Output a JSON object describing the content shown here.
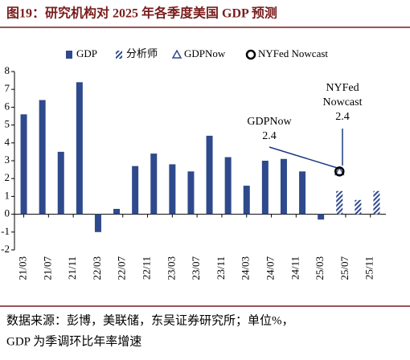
{
  "chart_data": {
    "type": "bar",
    "title": "图19：研究机构对 2025 年各季度美国 GDP 预测",
    "xlim": [
      -1.5,
      58.5
    ],
    "xticks": [
      {
        "value": 0,
        "label": "21/03"
      },
      {
        "value": 4,
        "label": "21/07"
      },
      {
        "value": 8,
        "label": "21/11"
      },
      {
        "value": 12,
        "label": "22/03"
      },
      {
        "value": 16,
        "label": "22/07"
      },
      {
        "value": 20,
        "label": "22/11"
      },
      {
        "value": 24,
        "label": "23/03"
      },
      {
        "value": 28,
        "label": "23/07"
      },
      {
        "value": 32,
        "label": "23/11"
      },
      {
        "value": 36,
        "label": "24/03"
      },
      {
        "value": 40,
        "label": "24/07"
      },
      {
        "value": 44,
        "label": "24/11"
      },
      {
        "value": 48,
        "label": "25/03"
      },
      {
        "value": 52,
        "label": "25/07"
      },
      {
        "value": 56,
        "label": "25/11"
      }
    ],
    "ylim": [
      -2,
      8
    ],
    "yticks": [
      -2,
      -1,
      0,
      1,
      2,
      3,
      4,
      5,
      6,
      7,
      8
    ],
    "legend": "top",
    "series": [
      {
        "name": "GDP",
        "kind": "bar",
        "color": "#2e4a8c",
        "x": [
          0,
          3,
          6,
          9,
          12,
          15,
          18,
          21,
          24,
          27,
          30,
          33,
          36,
          39,
          42,
          45,
          48
        ],
        "values": [
          5.6,
          6.4,
          3.5,
          7.4,
          -1.0,
          0.3,
          2.7,
          3.4,
          2.8,
          2.4,
          4.4,
          3.2,
          1.6,
          3.0,
          3.1,
          2.4,
          -0.3
        ]
      },
      {
        "name": "分析师",
        "kind": "hatched-bar",
        "color": "#2e4a8c",
        "x": [
          51,
          54,
          57
        ],
        "values": [
          1.3,
          0.8,
          1.3
        ]
      },
      {
        "name": "GDPNow",
        "kind": "triangle",
        "color": "#2e4a8c",
        "x": [
          51
        ],
        "values": [
          2.4
        ]
      },
      {
        "name": "NYFed Nowcast",
        "kind": "circle",
        "color": "#000000",
        "x": [
          51
        ],
        "values": [
          2.4
        ]
      }
    ],
    "annotations": [
      {
        "lines": [
          "GDPNow",
          "2.4"
        ]
      },
      {
        "lines": [
          "NYFed",
          "Nowcast",
          "2.4"
        ]
      }
    ],
    "source_lines": [
      "数据来源：彭博，美联储，东吴证券研究所；单位%，",
      "GDP 为季调环比年率增速"
    ]
  }
}
